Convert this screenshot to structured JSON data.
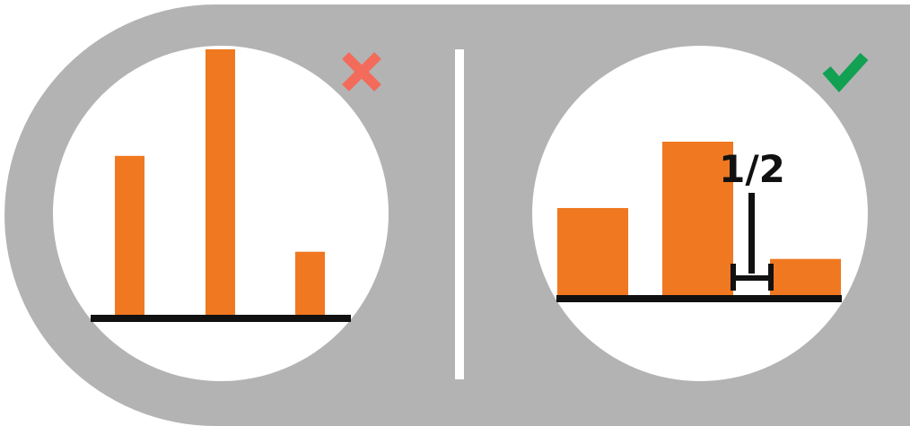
{
  "colors": {
    "panel": "#b3b3b3",
    "background": "#ffffff",
    "bar": "#f07820",
    "axis": "#111111",
    "wrong_mark": "#f26b5b",
    "right_mark": "#12a052"
  },
  "left_example": {
    "verdict": "wrong",
    "icon": "x-icon",
    "bar_values": [
      0.6,
      1.0,
      0.24
    ]
  },
  "right_example": {
    "verdict": "right",
    "icon": "checkmark-icon",
    "bar_values": [
      0.57,
      1.0,
      0.24
    ],
    "gap_label": "1/2"
  }
}
